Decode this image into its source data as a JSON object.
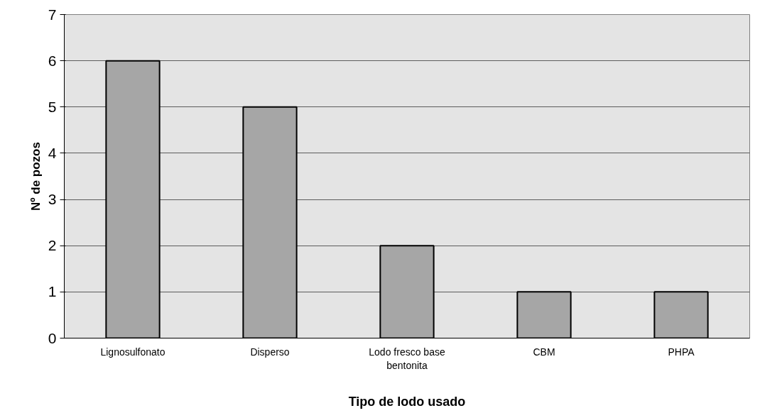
{
  "chart_data": {
    "type": "bar",
    "xlabel": "Tipo de lodo usado",
    "ylabel": "Nº de pozos",
    "categories": [
      "Lignosulfonato",
      "Disperso",
      "Lodo fresco base\nbentonita",
      "CBM",
      "PHPA"
    ],
    "values": [
      6,
      5,
      2,
      1,
      1
    ],
    "color": "#a6a6a6",
    "ylim": [
      0,
      7
    ],
    "yticks": [
      0,
      1,
      2,
      3,
      4,
      5,
      6,
      7
    ],
    "grid": "y"
  }
}
